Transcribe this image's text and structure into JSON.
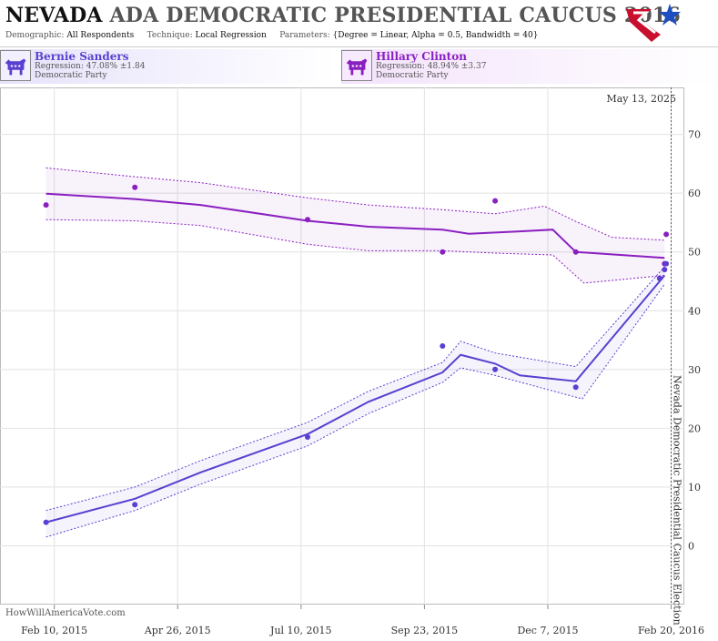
{
  "header": {
    "state": "NEVADA",
    "title_rest": "ADA DEMOCRATIC PRESIDENTIAL CAUCUS 2016",
    "demographic_label": "Demographic:",
    "demographic_value": "All Respondents",
    "technique_label": "Technique:",
    "technique_value": "Local Regression",
    "parameters_label": "Parameters:",
    "parameters_value": "{Degree = Linear, Alpha = 0.5, Bandwidth = 40}"
  },
  "candidates": [
    {
      "name": "Bernie Sanders",
      "regression": "Regression: 47.08% ±1.84",
      "party": "Democratic Party",
      "color": "#5a3fd0",
      "icon": "donkey-icon"
    },
    {
      "name": "Hillary Clinton",
      "regression": "Regression: 48.94% ±3.37",
      "party": "Democratic Party",
      "color": "#8a1fc0",
      "icon": "donkey-icon"
    }
  ],
  "watermark": "HowWillAmericaVote.com",
  "chart_data": {
    "type": "line",
    "date_label": "May 13, 2025",
    "event_label": "Nevada Democratic Presidential Caucus Election",
    "event_date": "2016-02-20",
    "x_ticks": [
      {
        "date": "2015-02-10",
        "label": "Feb 10, 2015"
      },
      {
        "date": "2015-04-26",
        "label": "Apr 26, 2015"
      },
      {
        "date": "2015-07-10",
        "label": "Jul 10, 2015"
      },
      {
        "date": "2015-09-23",
        "label": "Sep 23, 2015"
      },
      {
        "date": "2015-12-07",
        "label": "Dec 7, 2015"
      },
      {
        "date": "2016-02-20",
        "label": "Feb 20, 2016"
      }
    ],
    "xlim": [
      "2015-01-08",
      "2016-02-28"
    ],
    "ylim": [
      -10,
      78
    ],
    "y_ticks": [
      0,
      10,
      20,
      30,
      40,
      50,
      60,
      70
    ],
    "grid": true,
    "series": [
      {
        "name": "Hillary Clinton",
        "color": "#8a1fc0",
        "points": [
          [
            "2015-02-05",
            58
          ],
          [
            "2015-03-31",
            61
          ],
          [
            "2015-07-14",
            55.5
          ],
          [
            "2015-10-04",
            50
          ],
          [
            "2015-11-05",
            58.7
          ],
          [
            "2015-12-24",
            50
          ],
          [
            "2016-02-13",
            45.5
          ],
          [
            "2016-02-16",
            48
          ],
          [
            "2016-02-17",
            53
          ]
        ],
        "trend": [
          [
            "2015-02-05",
            59.9
          ],
          [
            "2015-03-31",
            59.0
          ],
          [
            "2015-05-10",
            58.0
          ],
          [
            "2015-07-14",
            55.3
          ],
          [
            "2015-08-20",
            54.3
          ],
          [
            "2015-10-04",
            53.8
          ],
          [
            "2015-10-20",
            53.1
          ],
          [
            "2015-11-20",
            53.5
          ],
          [
            "2015-12-10",
            53.8
          ],
          [
            "2015-12-24",
            50.0
          ],
          [
            "2016-02-16",
            49.0
          ]
        ],
        "upper": [
          [
            "2015-02-05",
            64.3
          ],
          [
            "2015-03-31",
            62.8
          ],
          [
            "2015-05-10",
            61.8
          ],
          [
            "2015-07-14",
            59.2
          ],
          [
            "2015-08-20",
            58.0
          ],
          [
            "2015-10-04",
            57.2
          ],
          [
            "2015-11-05",
            56.5
          ],
          [
            "2015-12-05",
            57.8
          ],
          [
            "2015-12-24",
            55.2
          ],
          [
            "2016-01-15",
            52.5
          ],
          [
            "2016-02-16",
            52.0
          ]
        ],
        "lower": [
          [
            "2015-02-05",
            55.5
          ],
          [
            "2015-03-31",
            55.3
          ],
          [
            "2015-05-10",
            54.5
          ],
          [
            "2015-07-14",
            51.3
          ],
          [
            "2015-08-20",
            50.2
          ],
          [
            "2015-10-04",
            50.2
          ],
          [
            "2015-11-05",
            49.8
          ],
          [
            "2015-12-10",
            49.5
          ],
          [
            "2015-12-29",
            44.7
          ],
          [
            "2016-02-16",
            46.0
          ]
        ]
      },
      {
        "name": "Bernie Sanders",
        "color": "#5a3fd0",
        "points": [
          [
            "2015-02-05",
            4
          ],
          [
            "2015-03-31",
            7
          ],
          [
            "2015-07-14",
            18.5
          ],
          [
            "2015-10-04",
            34
          ],
          [
            "2015-11-05",
            30
          ],
          [
            "2015-12-24",
            27
          ],
          [
            "2016-02-13",
            45.5
          ],
          [
            "2016-02-16",
            47
          ],
          [
            "2016-02-17",
            48
          ]
        ],
        "trend": [
          [
            "2015-02-05",
            4.0
          ],
          [
            "2015-03-31",
            8.0
          ],
          [
            "2015-05-10",
            12.5
          ],
          [
            "2015-07-14",
            19.0
          ],
          [
            "2015-08-20",
            24.5
          ],
          [
            "2015-10-04",
            29.5
          ],
          [
            "2015-10-15",
            32.5
          ],
          [
            "2015-11-05",
            31.0
          ],
          [
            "2015-11-20",
            29.0
          ],
          [
            "2015-12-24",
            28.0
          ],
          [
            "2016-02-16",
            46.0
          ]
        ],
        "upper": [
          [
            "2015-02-05",
            6.0
          ],
          [
            "2015-03-31",
            10.0
          ],
          [
            "2015-05-10",
            14.5
          ],
          [
            "2015-07-14",
            21.0
          ],
          [
            "2015-08-20",
            26.3
          ],
          [
            "2015-10-04",
            31.2
          ],
          [
            "2015-10-15",
            34.8
          ],
          [
            "2015-11-05",
            32.8
          ],
          [
            "2015-12-24",
            30.5
          ],
          [
            "2016-02-16",
            47.5
          ]
        ],
        "lower": [
          [
            "2015-02-05",
            1.5
          ],
          [
            "2015-03-31",
            6.0
          ],
          [
            "2015-05-10",
            10.5
          ],
          [
            "2015-07-14",
            17.0
          ],
          [
            "2015-08-20",
            22.5
          ],
          [
            "2015-10-04",
            27.8
          ],
          [
            "2015-10-15",
            30.3
          ],
          [
            "2015-11-05",
            29.0
          ],
          [
            "2015-12-28",
            25.0
          ],
          [
            "2016-02-16",
            44.5
          ]
        ]
      }
    ]
  }
}
